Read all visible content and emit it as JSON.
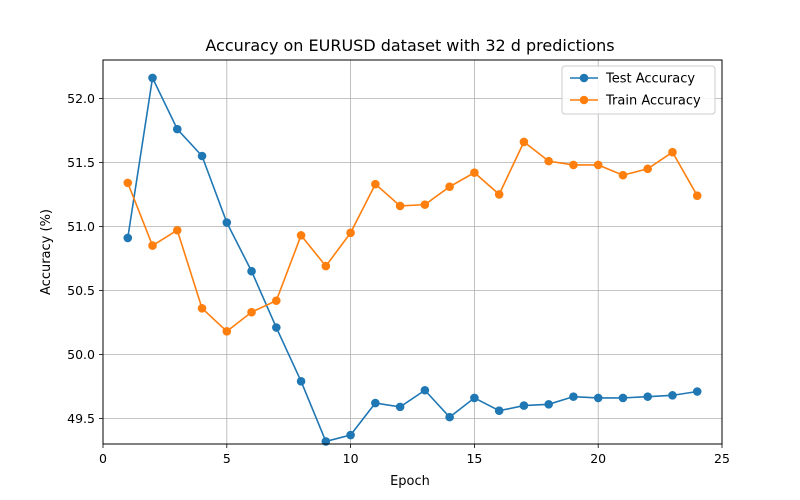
{
  "chart_data": {
    "type": "line",
    "title": "Accuracy on EURUSD dataset with 32 d predictions",
    "xlabel": "Epoch",
    "ylabel": "Accuracy (%)",
    "xlim": [
      0,
      25
    ],
    "ylim": [
      49.3,
      52.3
    ],
    "xticks": [
      0,
      5,
      10,
      15,
      20,
      25
    ],
    "yticks": [
      49.5,
      50.0,
      50.5,
      51.0,
      51.5,
      52.0
    ],
    "ytick_labels": [
      "49.5",
      "50.0",
      "50.5",
      "51.0",
      "51.5",
      "52.0"
    ],
    "grid": true,
    "legend_position": "top-right",
    "x": [
      1,
      2,
      3,
      4,
      5,
      6,
      7,
      8,
      9,
      10,
      11,
      12,
      13,
      14,
      15,
      16,
      17,
      18,
      19,
      20,
      21,
      22,
      23,
      24
    ],
    "series": [
      {
        "name": "Test Accuracy",
        "color": "#1f77b4",
        "values": [
          50.91,
          52.16,
          51.76,
          51.55,
          51.03,
          50.65,
          50.21,
          49.79,
          49.32,
          49.37,
          49.62,
          49.59,
          49.72,
          49.51,
          49.66,
          49.56,
          49.6,
          49.61,
          49.67,
          49.66,
          49.66,
          49.67,
          49.68,
          49.71
        ]
      },
      {
        "name": "Train Accuracy",
        "color": "#ff7f0e",
        "values": [
          51.34,
          50.85,
          50.97,
          50.36,
          50.18,
          50.33,
          50.42,
          50.93,
          50.69,
          50.95,
          51.33,
          51.16,
          51.17,
          51.31,
          51.42,
          51.25,
          51.66,
          51.51,
          51.48,
          51.48,
          51.4,
          51.45,
          51.58,
          51.24
        ]
      }
    ]
  }
}
